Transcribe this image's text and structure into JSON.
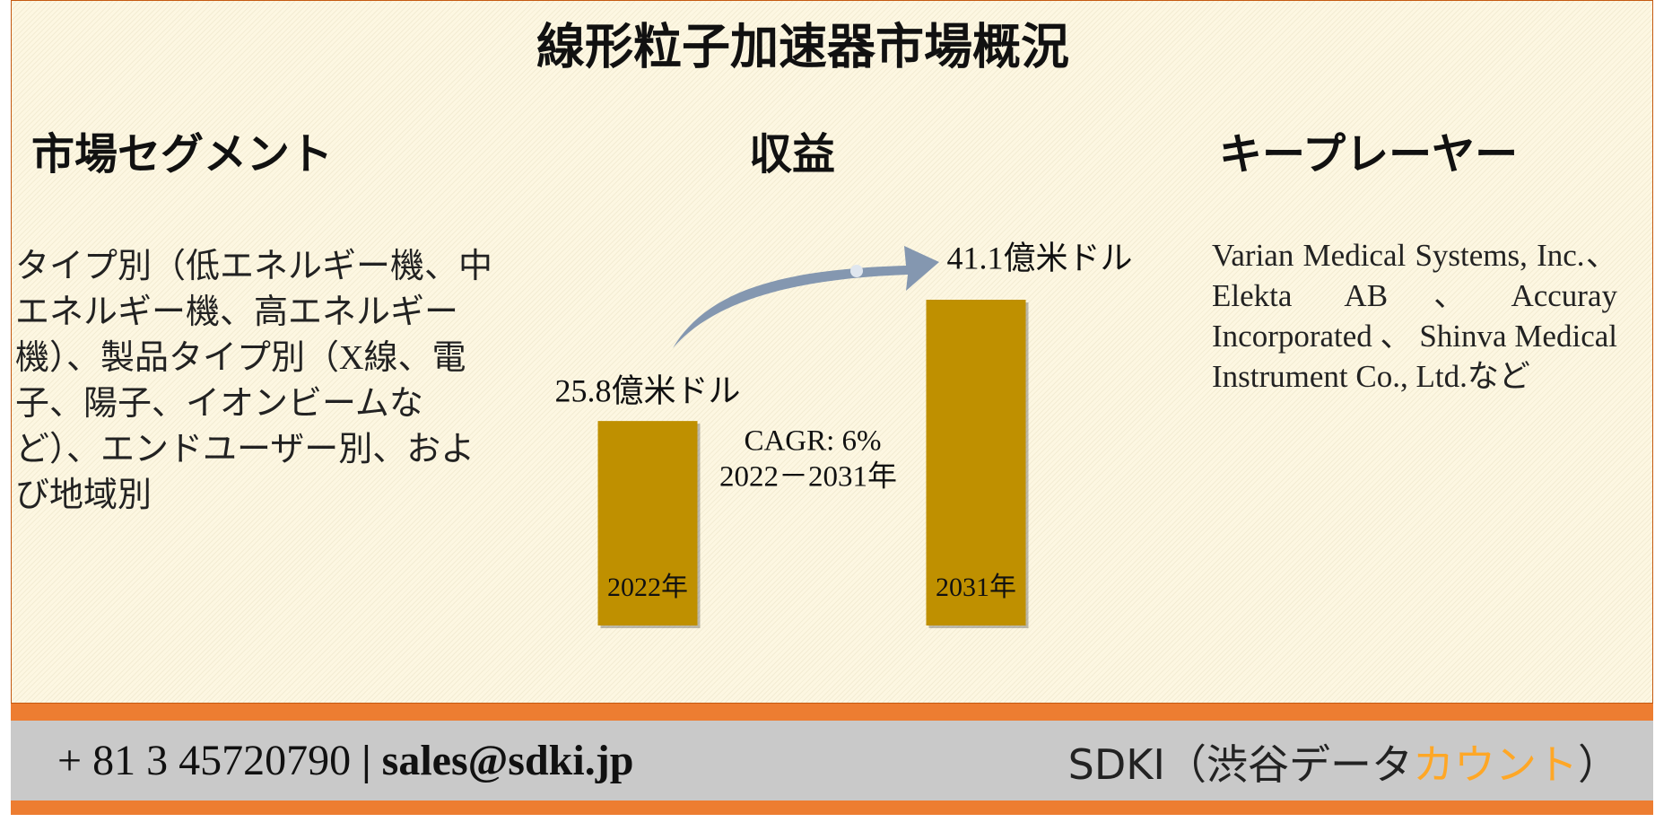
{
  "title": "線形粒子加速器市場概況",
  "segments": {
    "heading": "市場セグメント",
    "text": "タイプ別（低エネルギー機、中エネルギー機、高エネルギー機）、製品タイプ別（X線、電子、陽子、イオンビームなど）、エンドユーザー別、および地域別"
  },
  "chart_data": {
    "type": "bar",
    "title": "収益",
    "categories": [
      "2022年",
      "2031年"
    ],
    "values": [
      25.8,
      41.1
    ],
    "value_labels": [
      "25.8億米ドル",
      "41.1億米ドル"
    ],
    "color": "#bf9000",
    "annotations": [
      "CAGR: 6%",
      "2022－2031年"
    ]
  },
  "players": {
    "heading": "キープレーヤー",
    "text": "Varian Medical Systems, Inc.、Elekta AB、Accuray Incorporated 、 Shinva Medical Instrument Co., Ltd.など"
  },
  "footer": {
    "phone": "+ 81 3 45720790",
    "separator": "|",
    "email": "sales@sdki.jp",
    "brand": "SDKI（渋谷データ",
    "brand_highlight": "カウント",
    "brand_end": "）"
  }
}
